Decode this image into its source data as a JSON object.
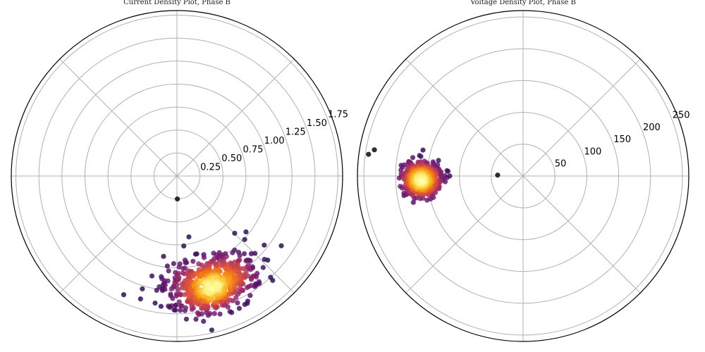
{
  "chart_data": [
    {
      "type": "scatter",
      "projection": "polar",
      "title": "Current Density Plot, Phase B",
      "rticks": [
        0.25,
        0.5,
        0.75,
        1.0,
        1.25,
        1.5,
        1.75
      ],
      "rtick_labels": [
        "0.25",
        "0.50",
        "0.75",
        "1.00",
        "1.25",
        "1.50",
        "1.75"
      ],
      "rlim": [
        0,
        1.8
      ],
      "rlabel_angle_deg": 22.5,
      "theta_grid_deg": [
        0,
        45,
        90,
        135,
        180,
        225,
        270,
        315
      ],
      "grid": true,
      "colormap": "inferno (density)",
      "cluster": {
        "theta_center_deg": 288,
        "theta_spread_deg": 22,
        "r_center": 1.25,
        "r_spread": 0.26,
        "n_points": 620
      },
      "outliers": [
        {
          "theta_deg": 271,
          "r": 0.25
        }
      ]
    },
    {
      "type": "scatter",
      "projection": "polar",
      "title": "Voltage Density Plot, Phase B",
      "rticks": [
        50,
        100,
        150,
        200,
        250
      ],
      "rtick_labels": [
        "50",
        "100",
        "150",
        "200",
        "250"
      ],
      "rlim": [
        0,
        260
      ],
      "rlabel_angle_deg": 22.5,
      "theta_grid_deg": [
        0,
        45,
        90,
        135,
        180,
        225,
        270,
        315
      ],
      "grid": true,
      "colormap": "inferno (density)",
      "cluster": {
        "theta_center_deg": 182,
        "theta_spread_deg": 8,
        "r_center": 160,
        "r_spread": 26,
        "n_points": 600
      },
      "outliers": [
        {
          "theta_deg": 178,
          "r": 40
        },
        {
          "theta_deg": 172,
          "r": 245
        },
        {
          "theta_deg": 170,
          "r": 237
        }
      ]
    }
  ]
}
